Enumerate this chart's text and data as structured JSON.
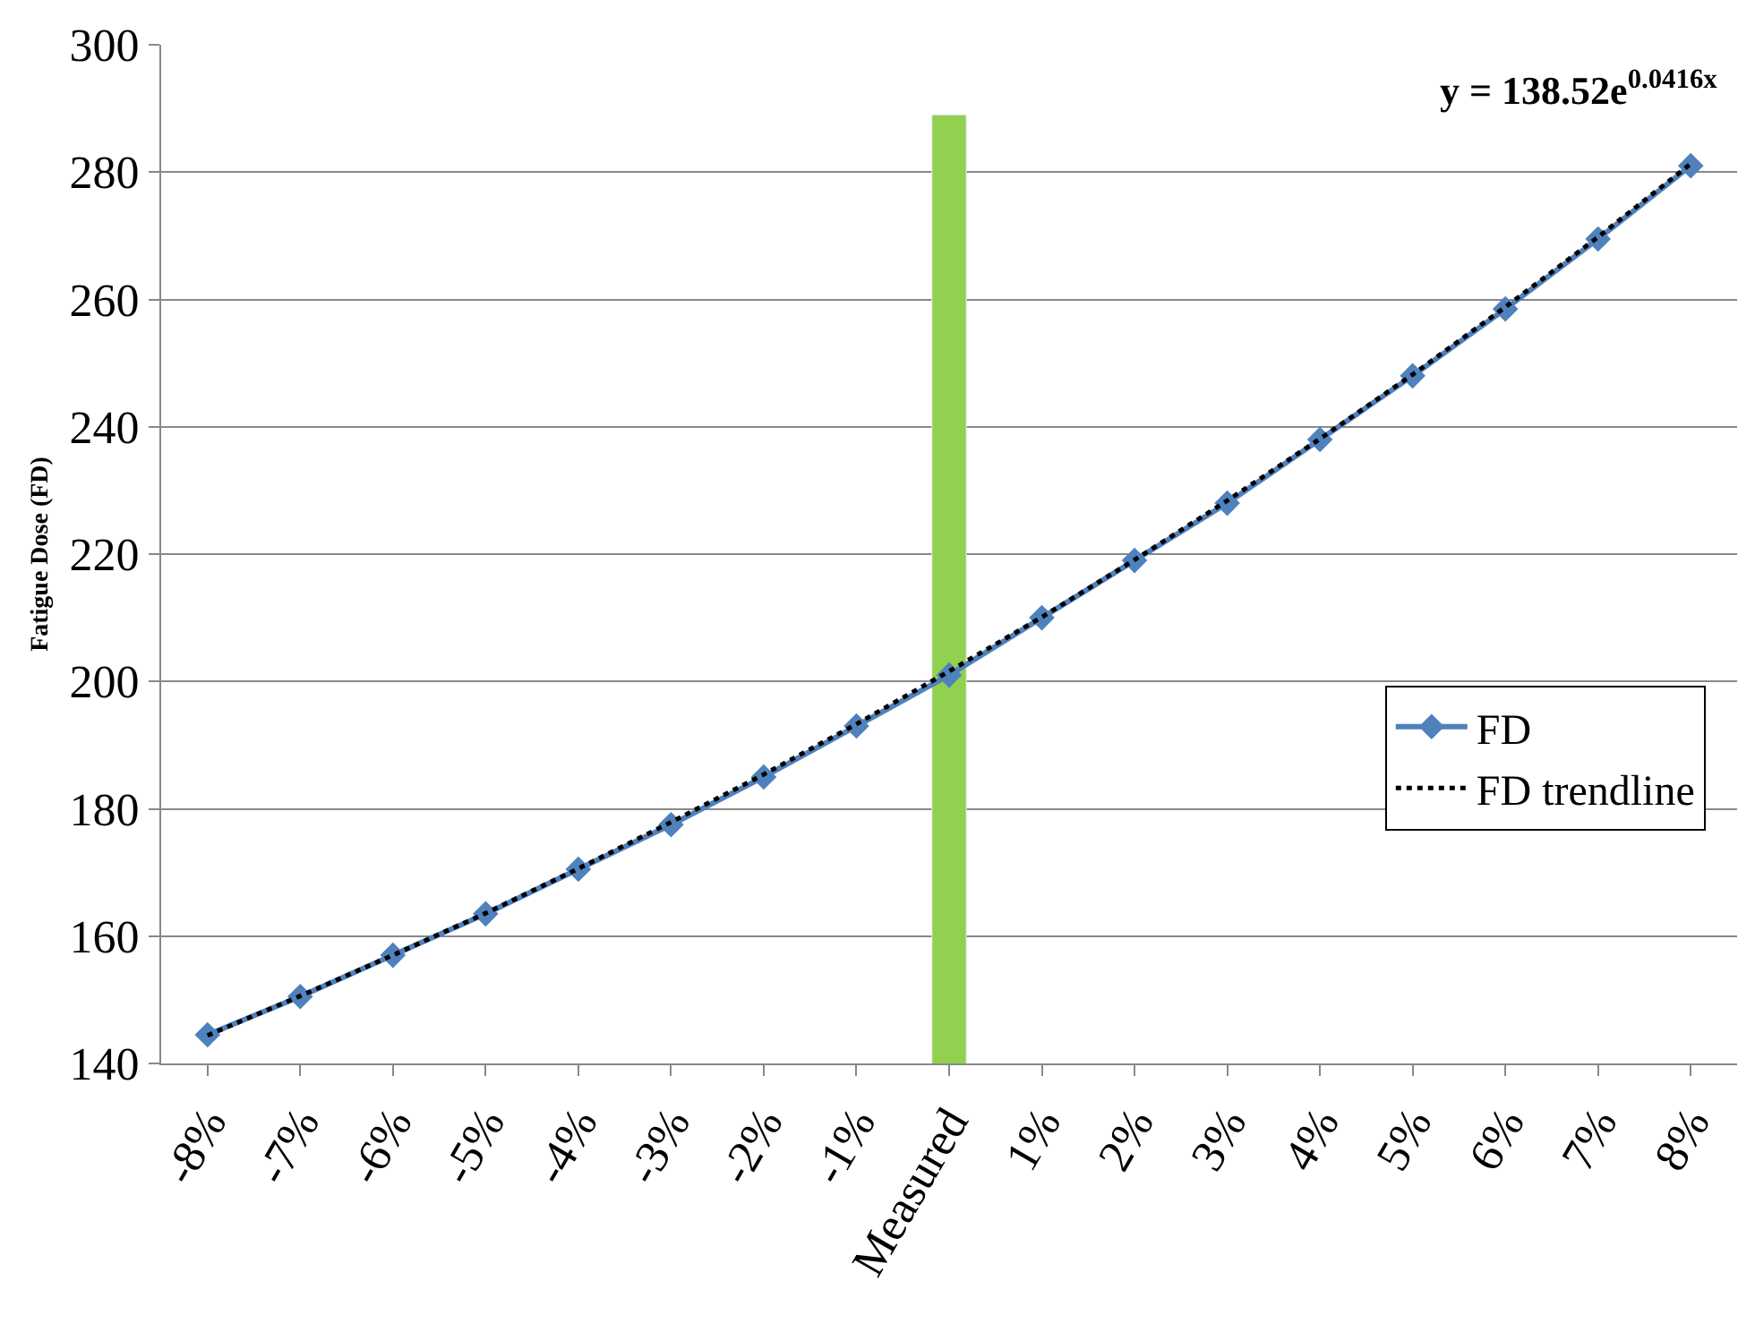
{
  "chart_data": {
    "type": "line",
    "ylabel": "Fatigue Dose (FD)",
    "categories": [
      "-8%",
      "-7%",
      "-6%",
      "-5%",
      "-4%",
      "-3%",
      "-2%",
      "-1%",
      "Measured",
      "1%",
      "2%",
      "3%",
      "4%",
      "5%",
      "6%",
      "7%",
      "8%"
    ],
    "series": [
      {
        "type": "bar",
        "color": "#92d050",
        "values": [
          null,
          null,
          null,
          null,
          null,
          null,
          null,
          null,
          289,
          null,
          null,
          null,
          null,
          null,
          null,
          null,
          null
        ]
      },
      {
        "name": "FD",
        "color": "#4f81bd",
        "marker": "diamond",
        "line_style": "solid",
        "values": [
          144.5,
          150.5,
          157,
          163.5,
          170.5,
          177.5,
          185,
          193,
          201,
          210,
          219,
          228,
          238,
          248,
          258.5,
          269.5,
          281
        ]
      },
      {
        "name": "FD trendline",
        "color": "#000000",
        "marker": "none",
        "line_style": "dotted",
        "values": [
          144.4,
          150.6,
          157,
          163.6,
          170.6,
          177.9,
          185.4,
          193.3,
          201.6,
          210.1,
          219.1,
          228.4,
          238.1,
          248.2,
          258.8,
          269.8,
          281.3
        ]
      }
    ],
    "ylim": [
      140,
      300
    ],
    "yticks": [
      140,
      160,
      180,
      200,
      220,
      240,
      260,
      280,
      300
    ],
    "grid": "y",
    "legend": "right",
    "annotations": [
      "y = 138.52e$^{0.0416x}$"
    ]
  }
}
